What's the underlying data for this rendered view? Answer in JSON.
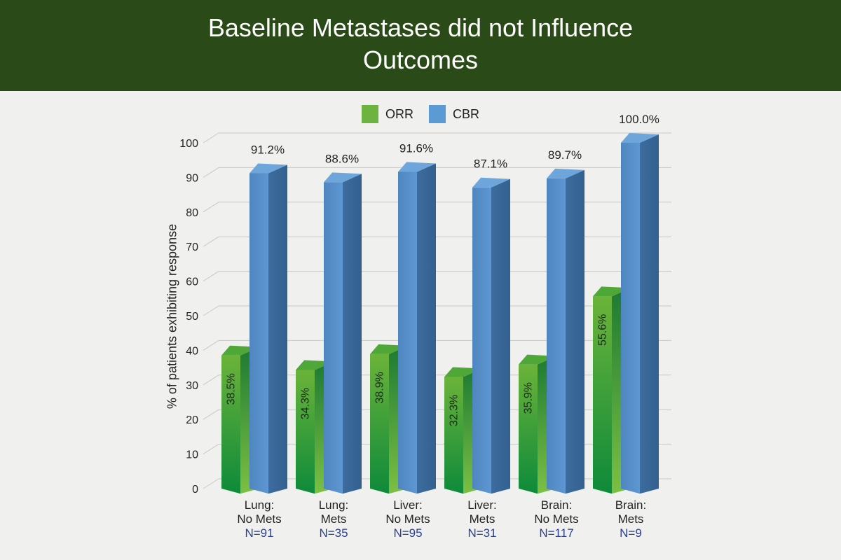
{
  "header": {
    "title": "Baseline Metastases did not Influence Outcomes"
  },
  "legend": [
    {
      "label": "ORR",
      "color": "#6db33f"
    },
    {
      "label": "CBR",
      "color": "#5b9bd5"
    }
  ],
  "chart_data": {
    "type": "bar",
    "ylabel": "% of patients exhibiting response",
    "ylim": [
      0,
      100
    ],
    "yticks": [
      0,
      10,
      20,
      30,
      40,
      50,
      60,
      70,
      80,
      90,
      100
    ],
    "categories": [
      {
        "line1": "Lung:",
        "line2": "No Mets",
        "n": "N=91"
      },
      {
        "line1": "Lung:",
        "line2": "Mets",
        "n": "N=35"
      },
      {
        "line1": "Liver:",
        "line2": "No Mets",
        "n": "N=95"
      },
      {
        "line1": "Liver:",
        "line2": "Mets",
        "n": "N=31"
      },
      {
        "line1": "Brain:",
        "line2": "No Mets",
        "n": "N=117"
      },
      {
        "line1": "Brain:",
        "line2": "Mets",
        "n": "N=9"
      }
    ],
    "series": [
      {
        "name": "ORR",
        "values": [
          38.5,
          34.3,
          38.9,
          32.3,
          35.9,
          55.6
        ],
        "labels": [
          "38.5%",
          "34.3%",
          "38.9%",
          "32.3%",
          "35.9%",
          "55.6%"
        ]
      },
      {
        "name": "CBR",
        "values": [
          91.2,
          88.6,
          91.6,
          87.1,
          89.7,
          100.0
        ],
        "labels": [
          "91.2%",
          "88.6%",
          "91.6%",
          "87.1%",
          "89.7%",
          "100.0%"
        ]
      }
    ],
    "grid": true
  }
}
